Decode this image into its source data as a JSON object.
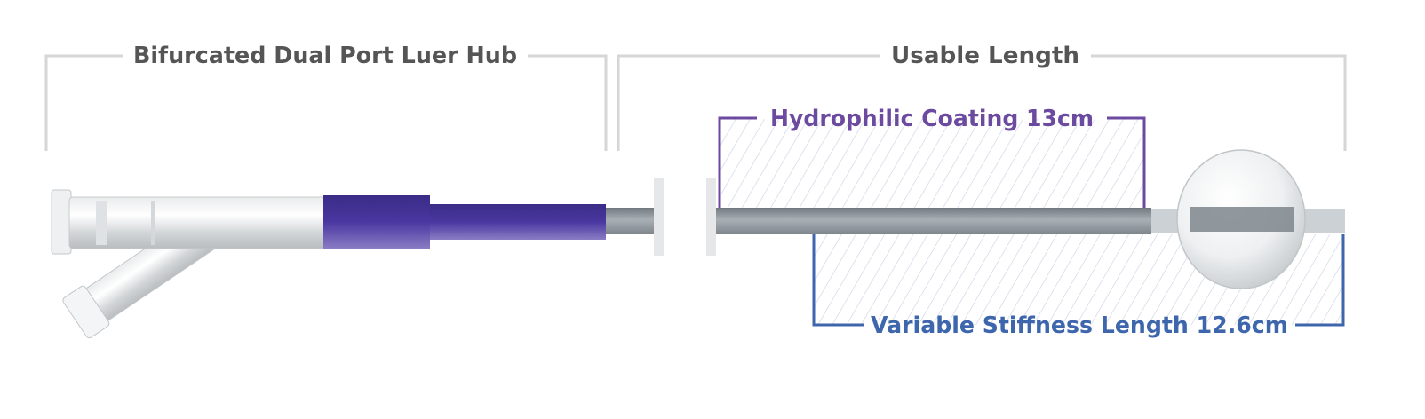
{
  "labels": {
    "hub": "Bifurcated Dual Port Luer Hub",
    "usable_length": "Usable Length",
    "coating": "Hydrophilic Coating 13cm",
    "stiffness": "Variable Stiffness Length 12.6cm"
  },
  "colors": {
    "bracket_gray": "#d6d6d6",
    "title_gray": "#555555",
    "coating_purple": "#6b4aa0",
    "stiffness_blue": "#3e66ad",
    "hub_purple": "#3f2f8c",
    "shaft_gray": "#8d969c"
  }
}
